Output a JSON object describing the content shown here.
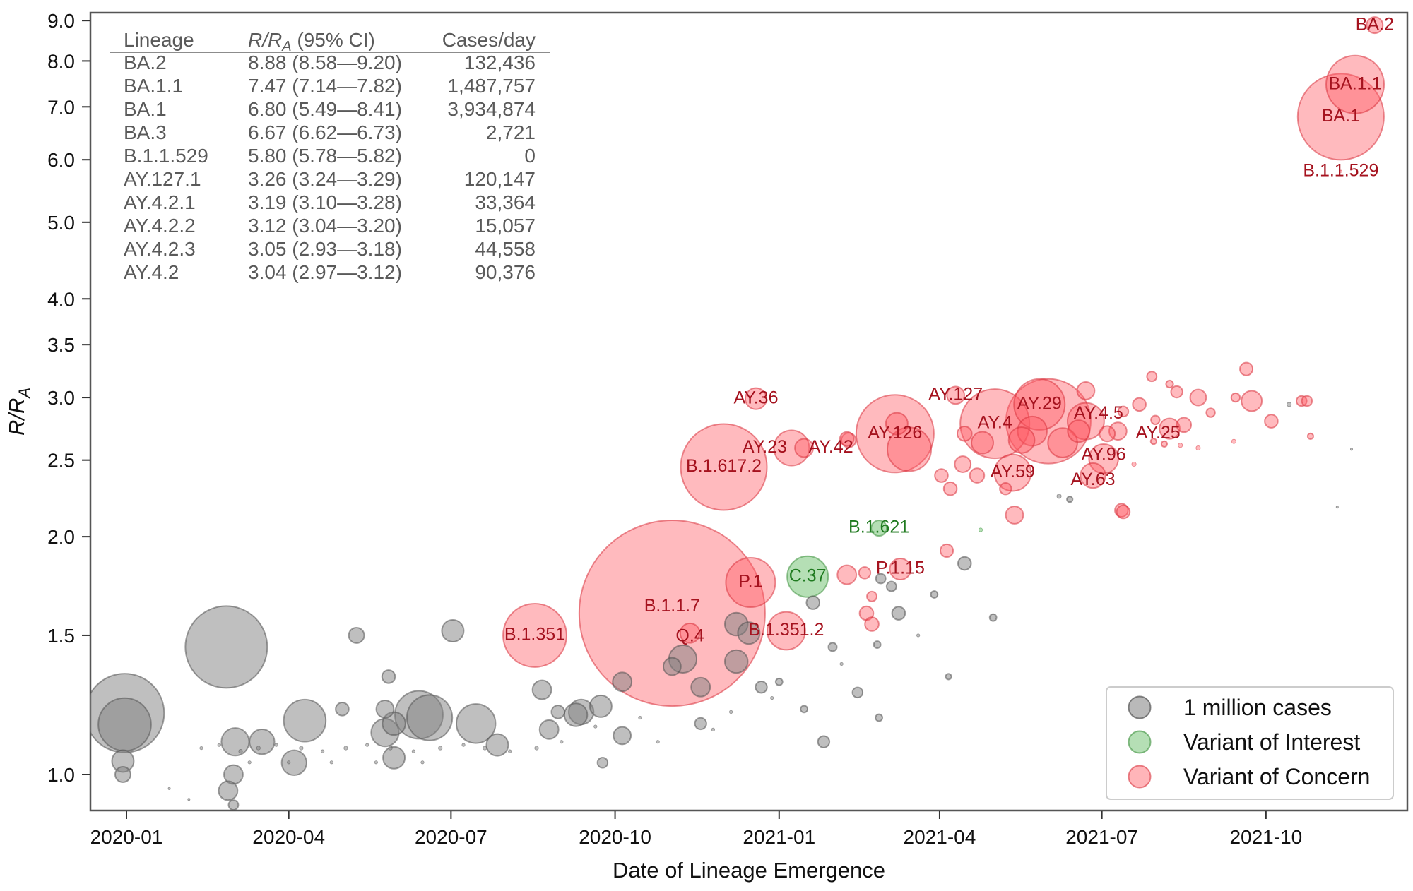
{
  "chart_data": {
    "type": "scatter",
    "xlabel": "Date of Lineage Emergence",
    "ylabel": {
      "main": "R/R",
      "sub": "A"
    },
    "x_axis": {
      "type": "date",
      "range": [
        "2019-12-12",
        "2021-12-19"
      ],
      "ticks": [
        "2020-01",
        "2020-04",
        "2020-07",
        "2020-10",
        "2021-01",
        "2021-04",
        "2021-07",
        "2021-10"
      ]
    },
    "y_axis": {
      "scale": "log",
      "range": [
        0.9,
        9.2
      ],
      "ticks": [
        "1.0",
        "1.5",
        "2.0",
        "2.5",
        "3.0",
        "3.5",
        "4.0",
        "5.0",
        "6.0",
        "7.0",
        "8.0",
        "9.0"
      ]
    },
    "grid": false,
    "bubble_size_reference": {
      "label": "1 million cases",
      "cases_millions": 1
    },
    "legend": {
      "placement": "bottom-right",
      "entries": [
        {
          "label": "1 million cases",
          "type": "other"
        },
        {
          "label": "Variant of Interest",
          "type": "voi"
        },
        {
          "label": "Variant of Concern",
          "type": "voc"
        }
      ]
    },
    "colors": {
      "other_fill": "#808080",
      "other_stroke": "#505050",
      "voi_fill": "#5cb85c",
      "voi_stroke": "#3a8f3a",
      "voi_text": "#1f7a1f",
      "voc_fill": "#ff5a64",
      "voc_stroke": "#d8323c",
      "voc_text": "#a5121e"
    },
    "table": {
      "headers": {
        "lineage": "Lineage",
        "ratio": {
          "main": "R/R",
          "sub": "A",
          "rest": " (95% CI)"
        },
        "cases": "Cases/day"
      },
      "rows": [
        {
          "lineage": "BA.2",
          "ratio": "8.88 (8.58—9.20)",
          "cases": "132,436"
        },
        {
          "lineage": "BA.1.1",
          "ratio": "7.47 (7.14—7.82)",
          "cases": "1,487,757"
        },
        {
          "lineage": "BA.1",
          "ratio": "6.80 (5.49—8.41)",
          "cases": "3,934,874"
        },
        {
          "lineage": "BA.3",
          "ratio": "6.67 (6.62—6.73)",
          "cases": "2,721"
        },
        {
          "lineage": "B.1.1.529",
          "ratio": "5.80 (5.78—5.82)",
          "cases": "0"
        },
        {
          "lineage": "AY.127.1",
          "ratio": "3.26 (3.24—3.29)",
          "cases": "120,147"
        },
        {
          "lineage": "AY.4.2.1",
          "ratio": "3.19 (3.10—3.28)",
          "cases": "33,364"
        },
        {
          "lineage": "AY.4.2.2",
          "ratio": "3.12 (3.04—3.20)",
          "cases": "15,057"
        },
        {
          "lineage": "AY.4.2.3",
          "ratio": "3.05 (2.93—3.18)",
          "cases": "44,558"
        },
        {
          "lineage": "AY.4.2",
          "ratio": "3.04 (2.97—3.12)",
          "cases": "90,376"
        }
      ]
    },
    "points_columns": [
      "date",
      "r_ratio",
      "cases_millions",
      "type",
      "label"
    ],
    "points": [
      [
        "2019-12-31",
        1.196,
        13,
        "other",
        ""
      ],
      [
        "2019-12-31",
        1.157,
        5.8,
        "other",
        ""
      ],
      [
        "2019-12-30",
        1.04,
        1.0,
        "other",
        ""
      ],
      [
        "2019-12-30",
        1.0,
        0.5,
        "other",
        ""
      ],
      [
        "2020-02-26",
        1.45,
        14,
        "other",
        ""
      ],
      [
        "2020-05-09",
        1.5,
        0.5,
        "other",
        ""
      ],
      [
        "2020-07-02",
        1.52,
        1.0,
        "other",
        ""
      ],
      [
        "2020-05-27",
        1.33,
        0.36,
        "other",
        ""
      ],
      [
        "2020-08-21",
        1.28,
        0.75,
        "other",
        ""
      ],
      [
        "2020-05-01",
        1.21,
        0.36,
        "other",
        ""
      ],
      [
        "2020-04-10",
        1.17,
        3.7,
        "other",
        ""
      ],
      [
        "2020-06-13",
        1.19,
        4.8,
        "other",
        ""
      ],
      [
        "2020-06-19",
        1.18,
        4.3,
        "other",
        ""
      ],
      [
        "2020-07-15",
        1.16,
        3.2,
        "other",
        ""
      ],
      [
        "2020-05-25",
        1.21,
        0.64,
        "other",
        ""
      ],
      [
        "2020-05-30",
        1.16,
        1.1,
        "other",
        ""
      ],
      [
        "2020-05-25",
        1.13,
        1.6,
        "other",
        ""
      ],
      [
        "2020-03-02",
        1.1,
        1.6,
        "other",
        ""
      ],
      [
        "2020-03-17",
        1.1,
        1.3,
        "other",
        ""
      ],
      [
        "2020-04-04",
        1.035,
        1.3,
        "other",
        ""
      ],
      [
        "2020-05-30",
        1.05,
        1.0,
        "other",
        ""
      ],
      [
        "2020-07-27",
        1.09,
        1.0,
        "other",
        ""
      ],
      [
        "2020-08-30",
        1.2,
        0.36,
        "other",
        ""
      ],
      [
        "2020-08-25",
        1.14,
        0.75,
        "other",
        ""
      ],
      [
        "2020-03-01",
        1.0,
        0.75,
        "other",
        ""
      ],
      [
        "2020-02-27",
        0.954,
        0.75,
        "other",
        ""
      ],
      [
        "2020-03-01",
        0.915,
        0.2,
        "other",
        ""
      ],
      [
        "2020-09-09",
        1.19,
        1.1,
        "other",
        ""
      ],
      [
        "2021-01-20",
        1.65,
        0.36,
        "other",
        ""
      ],
      [
        "2021-03-09",
        1.6,
        0.36,
        "other",
        ""
      ],
      [
        "2021-04-15",
        1.85,
        0.36,
        "other",
        ""
      ],
      [
        "2021-02-27",
        1.77,
        0.2,
        "other",
        ""
      ],
      [
        "2021-03-05",
        1.73,
        0.2,
        "other",
        ""
      ],
      [
        "2021-02-25",
        1.46,
        0.1,
        "other",
        ""
      ],
      [
        "2021-01-31",
        1.45,
        0.15,
        "other",
        ""
      ],
      [
        "2020-12-22",
        1.29,
        0.28,
        "other",
        ""
      ],
      [
        "2021-02-14",
        1.27,
        0.22,
        "other",
        ""
      ],
      [
        "2021-01-26",
        1.1,
        0.28,
        "other",
        ""
      ],
      [
        "2021-02-26",
        1.18,
        0.1,
        "other",
        ""
      ],
      [
        "2021-01-01",
        1.31,
        0.1,
        "other",
        ""
      ],
      [
        "2021-05-01",
        1.58,
        0.1,
        "other",
        ""
      ],
      [
        "2021-04-06",
        1.33,
        0.07,
        "other",
        ""
      ],
      [
        "2021-03-29",
        1.69,
        0.1,
        "other",
        ""
      ],
      [
        "2021-01-15",
        1.21,
        0.1,
        "other",
        ""
      ],
      [
        "2020-12-08",
        1.55,
        1.1,
        "other",
        ""
      ],
      [
        "2020-12-15",
        1.51,
        1.0,
        "other",
        ""
      ],
      [
        "2020-11-08",
        1.4,
        1.6,
        "other",
        ""
      ],
      [
        "2020-11-02",
        1.37,
        0.64,
        "other",
        ""
      ],
      [
        "2020-12-08",
        1.39,
        1.1,
        "other",
        ""
      ],
      [
        "2020-11-18",
        1.29,
        0.75,
        "other",
        ""
      ],
      [
        "2020-10-05",
        1.31,
        0.75,
        "other",
        ""
      ],
      [
        "2020-09-12",
        1.2,
        1.3,
        "other",
        ""
      ],
      [
        "2020-09-23",
        1.22,
        1.0,
        "other",
        ""
      ],
      [
        "2020-10-05",
        1.12,
        0.64,
        "other",
        ""
      ],
      [
        "2020-11-18",
        1.16,
        0.28,
        "other",
        ""
      ],
      [
        "2020-09-24",
        1.035,
        0.22,
        "other",
        ""
      ],
      [
        "2021-10-14",
        2.94,
        0.04,
        "other",
        ""
      ],
      [
        "2021-11-18",
        2.58,
        0.01,
        "other",
        ""
      ],
      [
        "2021-11-10",
        2.18,
        0.01,
        "other",
        ""
      ],
      [
        "2021-06-13",
        2.23,
        0.07,
        "other",
        ""
      ],
      [
        "2021-06-07",
        2.25,
        0.04,
        "other",
        ""
      ],
      [
        "2020-02-12",
        1.08,
        0.02,
        "other",
        ""
      ],
      [
        "2020-02-22",
        1.09,
        0.02,
        "other",
        ""
      ],
      [
        "2020-03-05",
        1.07,
        0.03,
        "other",
        ""
      ],
      [
        "2020-03-15",
        1.08,
        0.03,
        "other",
        ""
      ],
      [
        "2020-03-25",
        1.09,
        0.02,
        "other",
        ""
      ],
      [
        "2020-04-08",
        1.08,
        0.03,
        "other",
        ""
      ],
      [
        "2020-04-20",
        1.07,
        0.02,
        "other",
        ""
      ],
      [
        "2020-05-03",
        1.08,
        0.03,
        "other",
        ""
      ],
      [
        "2020-05-15",
        1.09,
        0.02,
        "other",
        ""
      ],
      [
        "2020-05-28",
        1.08,
        0.03,
        "other",
        ""
      ],
      [
        "2020-06-10",
        1.07,
        0.02,
        "other",
        ""
      ],
      [
        "2020-06-25",
        1.08,
        0.03,
        "other",
        ""
      ],
      [
        "2020-07-08",
        1.09,
        0.02,
        "other",
        ""
      ],
      [
        "2020-07-20",
        1.08,
        0.03,
        "other",
        ""
      ],
      [
        "2020-08-03",
        1.07,
        0.02,
        "other",
        ""
      ],
      [
        "2020-08-18",
        1.08,
        0.03,
        "other",
        ""
      ],
      [
        "2020-09-01",
        1.1,
        0.02,
        "other",
        ""
      ],
      [
        "2020-03-10",
        1.036,
        0.02,
        "other",
        ""
      ],
      [
        "2020-04-01",
        1.036,
        0.02,
        "other",
        ""
      ],
      [
        "2020-04-25",
        1.036,
        0.02,
        "other",
        ""
      ],
      [
        "2020-05-20",
        1.036,
        0.02,
        "other",
        ""
      ],
      [
        "2020-06-15",
        1.036,
        0.02,
        "other",
        ""
      ],
      [
        "2020-02-05",
        0.93,
        0.01,
        "other",
        ""
      ],
      [
        "2020-01-25",
        0.96,
        0.01,
        "other",
        ""
      ],
      [
        "2020-09-20",
        1.15,
        0.02,
        "other",
        ""
      ],
      [
        "2020-10-15",
        1.18,
        0.02,
        "other",
        ""
      ],
      [
        "2020-10-25",
        1.1,
        0.02,
        "other",
        ""
      ],
      [
        "2020-11-25",
        1.14,
        0.02,
        "other",
        ""
      ],
      [
        "2020-12-05",
        1.2,
        0.02,
        "other",
        ""
      ],
      [
        "2020-12-28",
        1.25,
        0.02,
        "other",
        ""
      ],
      [
        "2021-02-05",
        1.38,
        0.02,
        "other",
        ""
      ],
      [
        "2021-03-20",
        1.5,
        0.02,
        "other",
        ""
      ],
      [
        "2021-12-01",
        8.88,
        0.55,
        "voc",
        "BA.2"
      ],
      [
        "2021-11-20",
        7.47,
        7,
        "voc",
        "BA.1.1"
      ],
      [
        "2021-11-12",
        6.8,
        15.5,
        "voc",
        "BA.1"
      ],
      [
        "2021-11-12",
        5.8,
        0.01,
        "voc",
        "B.1.1.529"
      ],
      [
        "2020-12-19",
        2.99,
        0.94,
        "voc",
        "AY.36"
      ],
      [
        "2020-12-01",
        2.45,
        15.5,
        "voc",
        "B.1.617.2"
      ],
      [
        "2021-01-08",
        2.59,
        2.6,
        "voc",
        "AY.23"
      ],
      [
        "2021-01-15",
        2.59,
        0.7,
        "voc",
        "AY.42"
      ],
      [
        "2021-03-07",
        2.7,
        12.6,
        "voc",
        "AY.126"
      ],
      [
        "2021-03-15",
        2.58,
        4,
        "voc",
        ""
      ],
      [
        "2021-03-08",
        2.78,
        1.0,
        "voc",
        ""
      ],
      [
        "2021-02-09",
        2.65,
        0.44,
        "voc",
        ""
      ],
      [
        "2021-04-10",
        3.02,
        0.64,
        "voc",
        "AY.127"
      ],
      [
        "2021-05-02",
        2.78,
        10,
        "voc",
        "AY.4"
      ],
      [
        "2021-06-01",
        2.8,
        15,
        "voc",
        ""
      ],
      [
        "2021-05-27",
        2.94,
        5.4,
        "voc",
        "AY.29"
      ],
      [
        "2021-06-22",
        3.06,
        0.64,
        "voc",
        ""
      ],
      [
        "2021-06-22",
        2.8,
        2.8,
        "voc",
        "AY.4.5"
      ],
      [
        "2021-07-04",
        2.7,
        0.5,
        "voc",
        "AY.25"
      ],
      [
        "2021-05-12",
        2.41,
        2.8,
        "voc",
        "AY.59"
      ],
      [
        "2021-06-26",
        2.39,
        1.3,
        "voc",
        "AY.63"
      ],
      [
        "2021-07-02",
        2.51,
        1.8,
        "voc",
        "AY.96"
      ],
      [
        "2021-04-02",
        2.39,
        0.36,
        "voc",
        ""
      ],
      [
        "2021-04-07",
        2.3,
        0.36,
        "voc",
        ""
      ],
      [
        "2021-04-14",
        2.47,
        0.54,
        "voc",
        ""
      ],
      [
        "2021-05-13",
        2.13,
        0.64,
        "voc",
        ""
      ],
      [
        "2021-05-08",
        2.3,
        0.28,
        "voc",
        ""
      ],
      [
        "2021-04-22",
        2.39,
        0.44,
        "voc",
        ""
      ],
      [
        "2021-07-12",
        2.16,
        0.36,
        "voc",
        ""
      ],
      [
        "2021-04-15",
        2.7,
        0.44,
        "voc",
        ""
      ],
      [
        "2021-07-10",
        2.72,
        0.64,
        "voc",
        ""
      ],
      [
        "2021-04-25",
        2.63,
        1.0,
        "voc",
        ""
      ],
      [
        "2021-05-17",
        2.65,
        1.4,
        "voc",
        ""
      ],
      [
        "2021-06-09",
        2.63,
        1.8,
        "voc",
        ""
      ],
      [
        "2021-06-18",
        2.72,
        1.0,
        "voc",
        ""
      ],
      [
        "2021-05-23",
        2.72,
        1.8,
        "voc",
        ""
      ],
      [
        "2021-07-29",
        3.19,
        0.2,
        "voc",
        ""
      ],
      [
        "2021-09-20",
        3.26,
        0.34,
        "voc",
        ""
      ],
      [
        "2021-09-23",
        2.97,
        0.87,
        "voc",
        ""
      ],
      [
        "2021-08-24",
        3.0,
        0.54,
        "voc",
        ""
      ],
      [
        "2021-08-12",
        3.05,
        0.28,
        "voc",
        ""
      ],
      [
        "2021-08-08",
        3.12,
        0.11,
        "voc",
        ""
      ],
      [
        "2021-07-22",
        2.94,
        0.36,
        "voc",
        ""
      ],
      [
        "2021-07-13",
        2.88,
        0.22,
        "voc",
        ""
      ],
      [
        "2021-08-08",
        2.74,
        0.87,
        "voc",
        ""
      ],
      [
        "2021-08-16",
        2.77,
        0.44,
        "voc",
        ""
      ],
      [
        "2021-10-04",
        2.8,
        0.36,
        "voc",
        ""
      ],
      [
        "2021-10-21",
        2.97,
        0.22,
        "voc",
        ""
      ],
      [
        "2021-10-24",
        2.97,
        0.22,
        "voc",
        ""
      ],
      [
        "2021-09-14",
        3.0,
        0.16,
        "voc",
        ""
      ],
      [
        "2021-08-31",
        2.87,
        0.16,
        "voc",
        ""
      ],
      [
        "2021-07-31",
        2.81,
        0.16,
        "voc",
        ""
      ],
      [
        "2021-10-26",
        2.68,
        0.07,
        "voc",
        ""
      ],
      [
        "2021-07-30",
        2.64,
        0.07,
        "voc",
        ""
      ],
      [
        "2021-08-05",
        2.62,
        0.07,
        "voc",
        ""
      ],
      [
        "2021-08-14",
        2.61,
        0.04,
        "voc",
        ""
      ],
      [
        "2021-08-24",
        2.59,
        0.04,
        "voc",
        ""
      ],
      [
        "2021-09-13",
        2.64,
        0.04,
        "voc",
        ""
      ],
      [
        "2021-07-13",
        2.15,
        0.36,
        "voc",
        ""
      ],
      [
        "2021-07-19",
        2.47,
        0.04,
        "voc",
        ""
      ],
      [
        "2021-02-08",
        1.79,
        0.75,
        "voc",
        ""
      ],
      [
        "2021-02-18",
        1.8,
        0.28,
        "voc",
        ""
      ],
      [
        "2021-02-22",
        1.68,
        0.2,
        "voc",
        ""
      ],
      [
        "2021-02-19",
        1.6,
        0.4,
        "voc",
        ""
      ],
      [
        "2021-02-22",
        1.55,
        0.4,
        "voc",
        ""
      ],
      [
        "2021-04-05",
        1.92,
        0.34,
        "voc",
        ""
      ],
      [
        "2021-02-08",
        2.66,
        0.4,
        "voc",
        ""
      ],
      [
        "2020-11-02",
        1.6,
        72,
        "voc",
        "B.1.1.7"
      ],
      [
        "2020-12-16",
        1.75,
        5.1,
        "voc",
        "P.1"
      ],
      [
        "2020-11-12",
        1.51,
        0.8,
        "voc",
        "Q.4"
      ],
      [
        "2021-01-05",
        1.52,
        3.0,
        "voc",
        "B.1.351.2"
      ],
      [
        "2021-03-10",
        1.82,
        0.94,
        "voc",
        "P.1.15"
      ],
      [
        "2020-08-17",
        1.5,
        8.4,
        "voc",
        "B.1.351"
      ],
      [
        "2021-01-17",
        1.78,
        3.5,
        "voi",
        "C.37"
      ],
      [
        "2021-02-26",
        2.05,
        0.5,
        "voi",
        "B.1.621"
      ],
      [
        "2021-04-24",
        2.04,
        0.03,
        "voi",
        ""
      ]
    ]
  }
}
